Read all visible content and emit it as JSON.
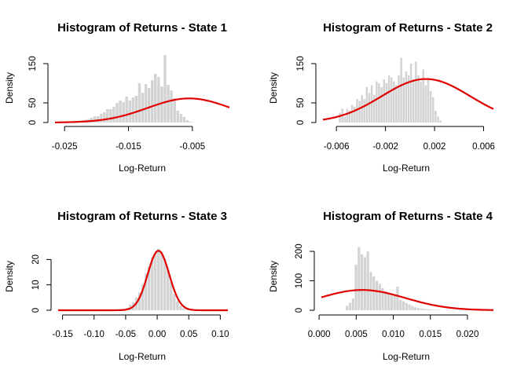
{
  "colors": {
    "bar": "#d3d3d3",
    "curve": "#e00000",
    "axis": "#000000"
  },
  "chart_data": [
    {
      "type": "bar",
      "title": "Histogram of Returns - State 1",
      "xlabel": "Log-Return",
      "ylabel": "Density",
      "xlim": [
        -0.0265,
        0.0008
      ],
      "ylim": [
        0,
        180
      ],
      "xticks": [
        -0.025,
        -0.015,
        -0.005
      ],
      "xtick_labels": [
        "-0.025",
        "-0.015",
        "-0.005"
      ],
      "yticks": [
        0,
        50,
        150
      ],
      "ytick_labels": [
        "0",
        "50",
        "150"
      ],
      "bin_width": 0.0005,
      "bins_x0": -0.0245,
      "bar_values": [
        2,
        2,
        4,
        5,
        6,
        7,
        9,
        12,
        16,
        16,
        22,
        26,
        34,
        34,
        40,
        50,
        56,
        52,
        66,
        56,
        64,
        68,
        100,
        76,
        98,
        88,
        108,
        124,
        116,
        92,
        172,
        96,
        82,
        62,
        30,
        22,
        14,
        6,
        2
      ],
      "curve": {
        "name": "Normal density",
        "mean": -0.0055,
        "sd": 0.0065,
        "xrange": [
          -0.0265,
          0.0008
        ]
      }
    },
    {
      "type": "bar",
      "title": "Histogram of Returns - State 2",
      "xlabel": "Log-Return",
      "ylabel": "Density",
      "xlim": [
        -0.0071,
        0.0068
      ],
      "ylim": [
        0,
        180
      ],
      "xticks": [
        -0.006,
        -0.002,
        0.002,
        0.006
      ],
      "xtick_labels": [
        "-0.006",
        "-0.002",
        "0.002",
        "0.006"
      ],
      "yticks": [
        0,
        50,
        150
      ],
      "ytick_labels": [
        "0",
        "50",
        "150"
      ],
      "bin_width": 0.0002,
      "bins_x0": -0.0058,
      "bar_values": [
        25,
        35,
        15,
        35,
        30,
        45,
        40,
        60,
        55,
        70,
        60,
        90,
        75,
        95,
        70,
        105,
        100,
        90,
        110,
        100,
        120,
        115,
        105,
        95,
        120,
        165,
        115,
        130,
        120,
        150,
        110,
        155,
        120,
        105,
        135,
        95,
        110,
        80,
        65,
        30,
        15,
        5
      ],
      "curve": {
        "name": "Normal density",
        "mean": 0.0013,
        "sd": 0.0036,
        "xrange": [
          -0.0071,
          0.0068
        ]
      }
    },
    {
      "type": "bar",
      "title": "Histogram of Returns - State 3",
      "xlabel": "Log-Return",
      "ylabel": "Density",
      "xlim": [
        -0.157,
        0.112
      ],
      "ylim": [
        0,
        26
      ],
      "xticks": [
        -0.15,
        -0.1,
        -0.05,
        0.0,
        0.05,
        0.1
      ],
      "xtick_labels": [
        "-0.15",
        "-0.10",
        "-0.05",
        "0.00",
        "0.05",
        "0.10"
      ],
      "yticks": [
        0,
        10,
        20
      ],
      "ytick_labels": [
        "0",
        "10",
        "20"
      ],
      "bin_width": 0.005,
      "bins_x0": -0.06,
      "bar_values": [
        0.3,
        0.5,
        1.0,
        2.2,
        3.2,
        5.0,
        7.0,
        10.2,
        14.5,
        17.3,
        20.8,
        22.6,
        24.3,
        23.2,
        20.4,
        16.2,
        11.0,
        6.4,
        3.6,
        1.8,
        0.8,
        0.4,
        0.2
      ],
      "curve": {
        "name": "Normal density",
        "mean": 0.002,
        "sd": 0.017,
        "xrange": [
          -0.157,
          0.112
        ]
      }
    },
    {
      "type": "bar",
      "title": "Histogram of Returns - State 4",
      "xlabel": "Log-Return",
      "ylabel": "Density",
      "xlim": [
        0.0003,
        0.0235
      ],
      "ylim": [
        0,
        240
      ],
      "xticks": [
        0.0,
        0.005,
        0.01,
        0.015,
        0.02
      ],
      "xtick_labels": [
        "0.000",
        "0.005",
        "0.010",
        "0.015",
        "0.020"
      ],
      "yticks": [
        0,
        100,
        200
      ],
      "ytick_labels": [
        "0",
        "100",
        "200"
      ],
      "bin_width": 0.0004,
      "bins_x0": 0.0036,
      "bar_values": [
        15,
        25,
        40,
        155,
        215,
        190,
        180,
        200,
        130,
        115,
        100,
        90,
        75,
        65,
        60,
        55,
        50,
        80,
        35,
        30,
        25,
        20,
        15,
        10,
        8,
        6,
        5,
        4,
        3,
        2,
        2,
        1
      ],
      "curve": {
        "name": "Normal density",
        "mean": 0.0058,
        "sd": 0.0058,
        "xrange": [
          0.0003,
          0.0235
        ]
      }
    }
  ]
}
